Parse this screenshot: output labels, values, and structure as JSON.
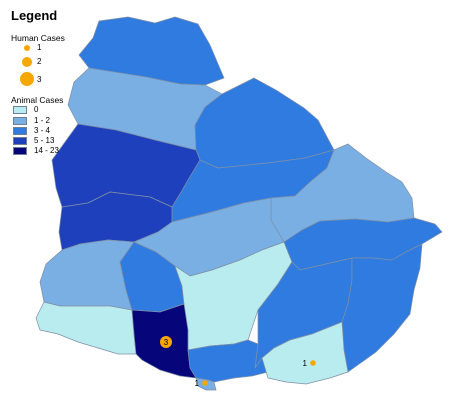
{
  "legend": {
    "title": "Legend",
    "human_cases": {
      "heading": "Human Cases",
      "items": [
        {
          "label": "1",
          "value": 1
        },
        {
          "label": "2",
          "value": 2
        },
        {
          "label": "3",
          "value": 3
        }
      ]
    },
    "animal_cases": {
      "heading": "Animal Cases",
      "classes": [
        {
          "label": "0",
          "color": "#b8ecef"
        },
        {
          "label": "1 - 2",
          "color": "#7aafe3"
        },
        {
          "label": "3 - 4",
          "color": "#2f7be0"
        },
        {
          "label": "5 - 13",
          "color": "#1f40bd"
        },
        {
          "label": "14 - 23",
          "color": "#06067a"
        }
      ]
    }
  },
  "map": {
    "case_labels": [
      "3",
      "1",
      "1"
    ]
  },
  "colors": {
    "human_case_marker": "#f7a700",
    "border": "#7f8fa6"
  }
}
